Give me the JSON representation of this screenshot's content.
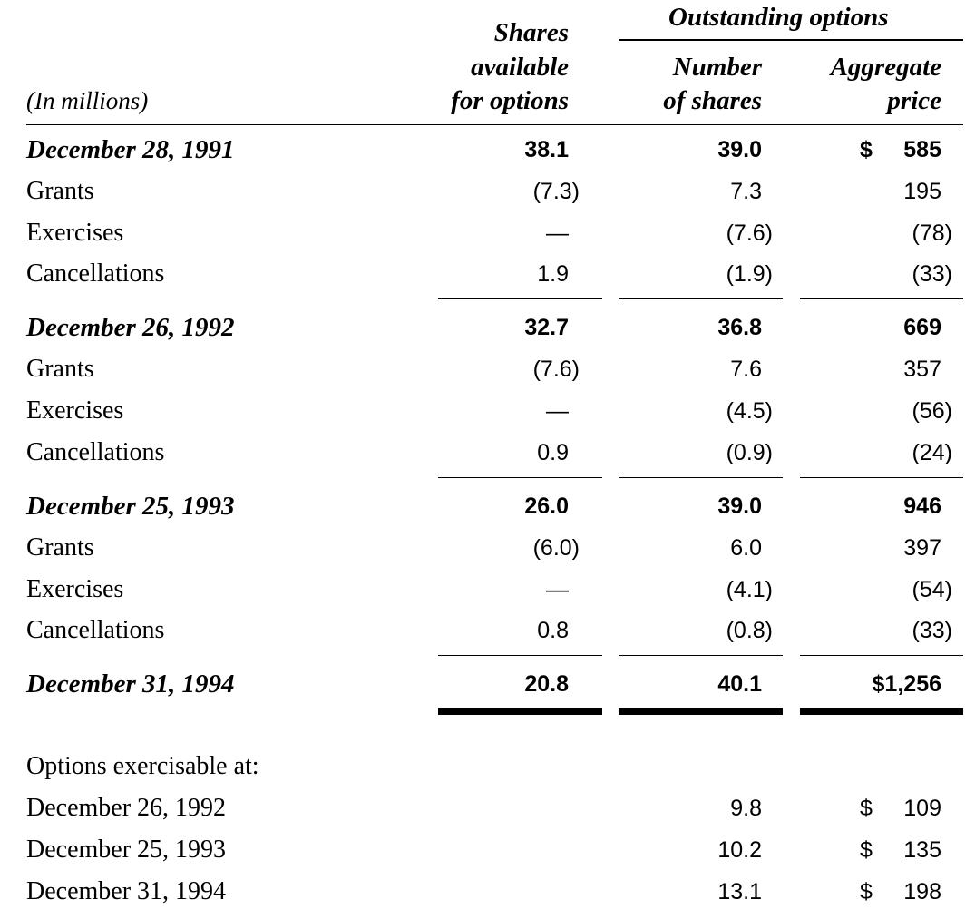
{
  "header": {
    "units": "(In millions)",
    "col1": [
      "Shares",
      "available",
      "for options"
    ],
    "group": "Outstanding options",
    "col2": [
      "Number",
      "of shares"
    ],
    "col3": [
      "Aggregate",
      "price"
    ]
  },
  "rows": [
    {
      "label": "December 28, 1991",
      "shares_available": "38.1",
      "number_of_shares": "39.0",
      "dollar": "$",
      "aggregate_price": "585"
    },
    {
      "label": "Grants",
      "shares_available": "(7.3)",
      "number_of_shares": "7.3",
      "aggregate_price": "195"
    },
    {
      "label": "Exercises",
      "shares_available": "—",
      "number_of_shares": "(7.6)",
      "aggregate_price": "(78)"
    },
    {
      "label": "Cancellations",
      "shares_available": "1.9",
      "number_of_shares": "(1.9)",
      "aggregate_price": "(33)"
    },
    {
      "label": "December 26, 1992",
      "shares_available": "32.7",
      "number_of_shares": "36.8",
      "aggregate_price": "669"
    },
    {
      "label": "Grants",
      "shares_available": "(7.6)",
      "number_of_shares": "7.6",
      "aggregate_price": "357"
    },
    {
      "label": "Exercises",
      "shares_available": "—",
      "number_of_shares": "(4.5)",
      "aggregate_price": "(56)"
    },
    {
      "label": "Cancellations",
      "shares_available": "0.9",
      "number_of_shares": "(0.9)",
      "aggregate_price": "(24)"
    },
    {
      "label": "December 25, 1993",
      "shares_available": "26.0",
      "number_of_shares": "39.0",
      "aggregate_price": "946"
    },
    {
      "label": "Grants",
      "shares_available": "(6.0)",
      "number_of_shares": "6.0",
      "aggregate_price": "397"
    },
    {
      "label": "Exercises",
      "shares_available": "—",
      "number_of_shares": "(4.1)",
      "aggregate_price": "(54)"
    },
    {
      "label": "Cancellations",
      "shares_available": "0.8",
      "number_of_shares": "(0.8)",
      "aggregate_price": "(33)"
    },
    {
      "label": "December 31, 1994",
      "shares_available": "20.8",
      "number_of_shares": "40.1",
      "aggregate_price": "$1,256"
    }
  ],
  "exercisable": {
    "title": "Options exercisable at:",
    "rows": [
      {
        "label": "December 26, 1992",
        "number_of_shares": "9.8",
        "dollar": "$",
        "aggregate_price": "109"
      },
      {
        "label": "December 25, 1993",
        "number_of_shares": "10.2",
        "dollar": "$",
        "aggregate_price": "135"
      },
      {
        "label": "December 31, 1994",
        "number_of_shares": "13.1",
        "dollar": "$",
        "aggregate_price": "198"
      }
    ]
  }
}
